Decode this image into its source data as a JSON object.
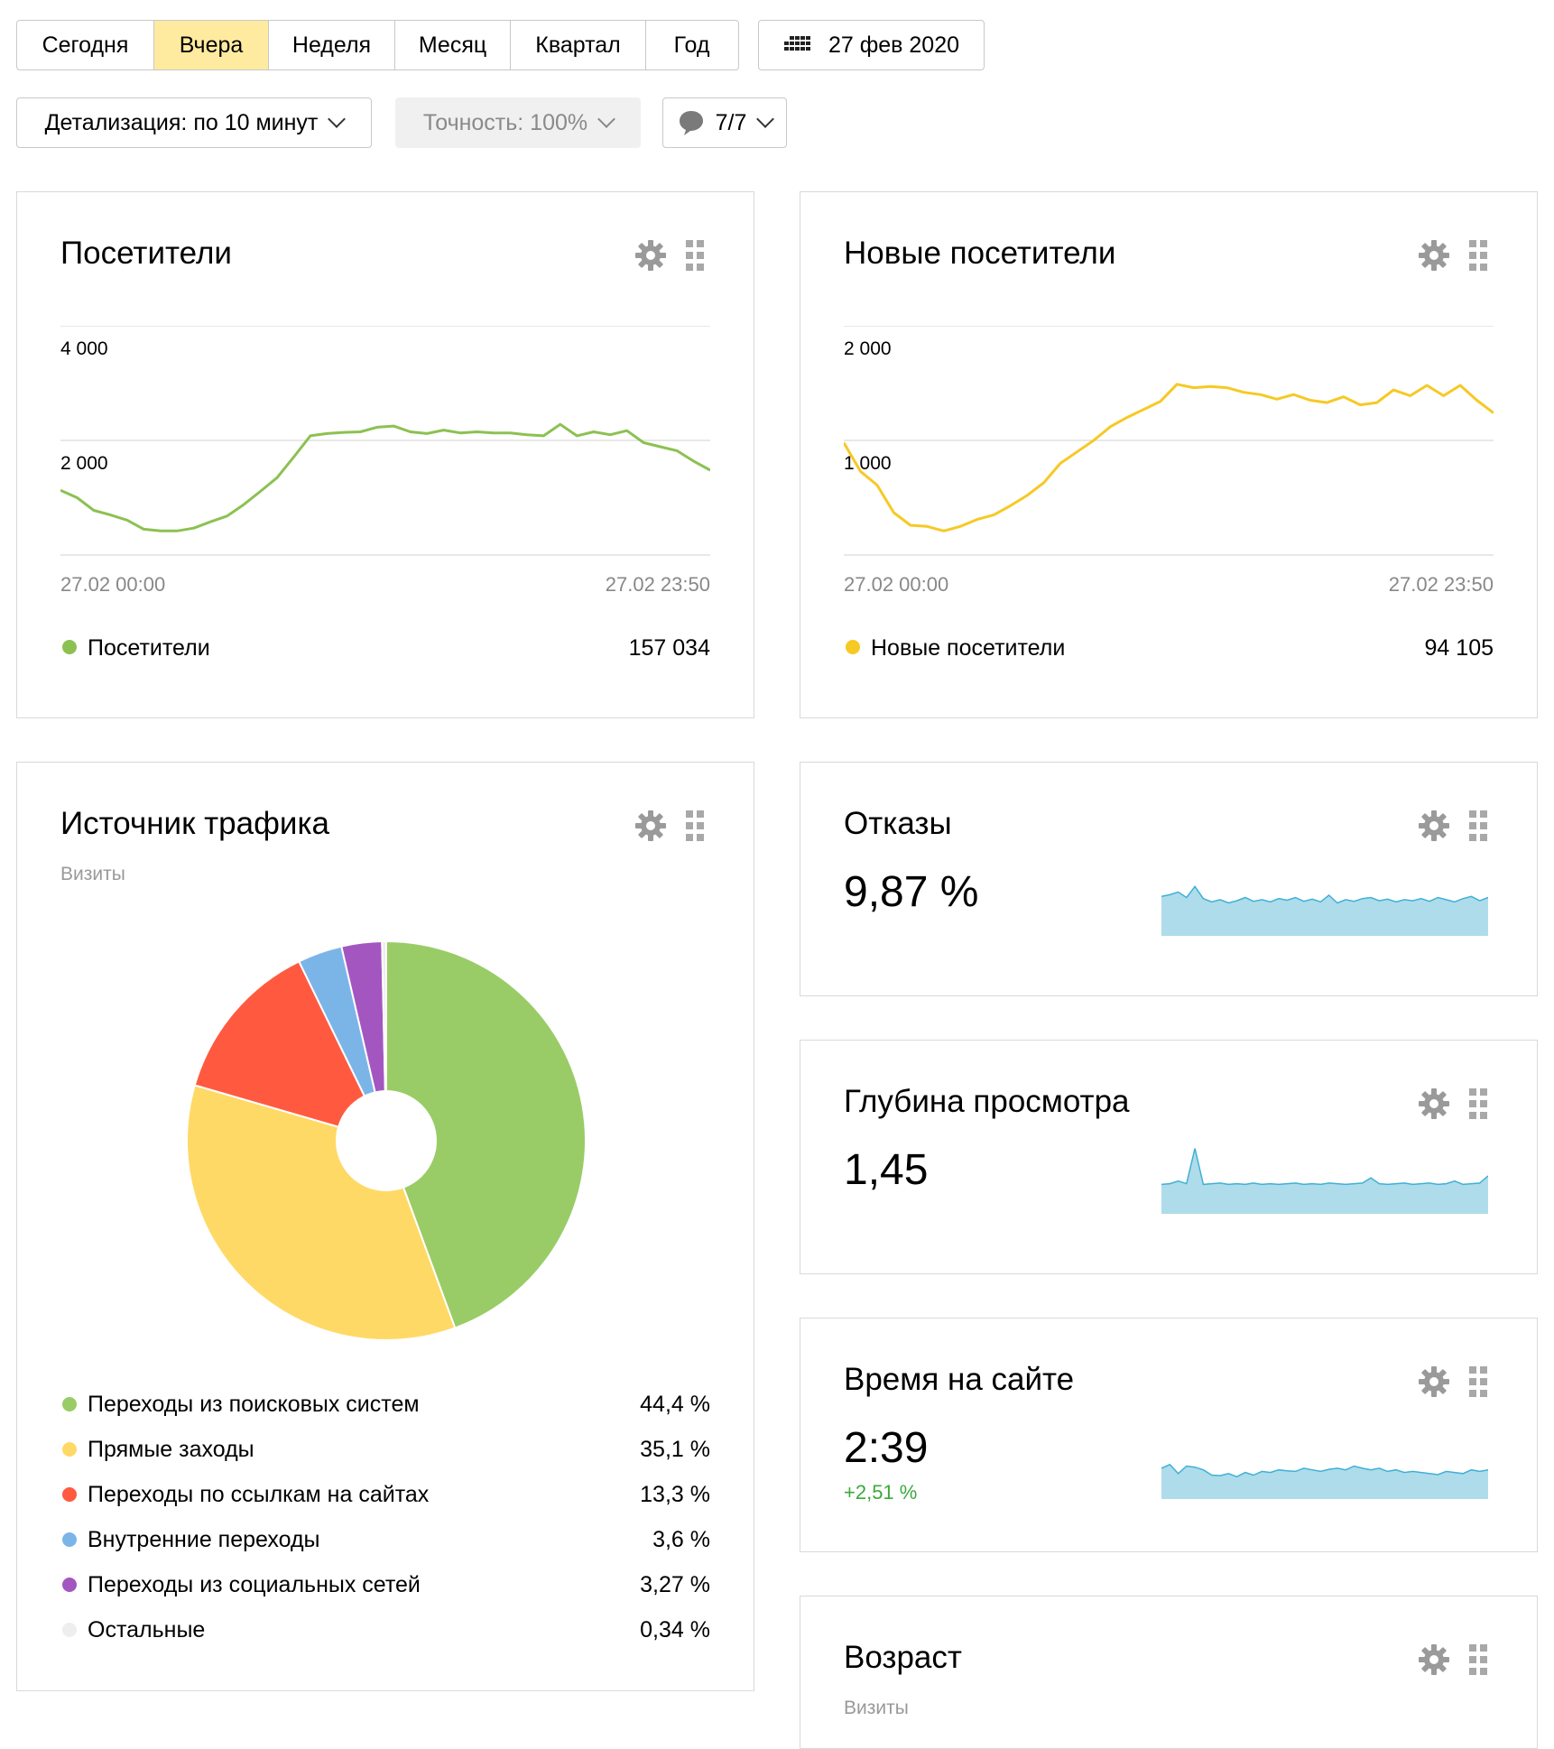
{
  "period_tabs": [
    {
      "label": "Сегодня",
      "active": false
    },
    {
      "label": "Вчера",
      "active": true
    },
    {
      "label": "Неделя",
      "active": false
    },
    {
      "label": "Месяц",
      "active": false
    },
    {
      "label": "Квартал",
      "active": false
    },
    {
      "label": "Год",
      "active": false
    }
  ],
  "date_button": {
    "label": "27 фев 2020",
    "icon": "calendar-grid-icon"
  },
  "detail_dropdown": {
    "label": "Детализация: по 10 минут"
  },
  "accuracy_dropdown": {
    "label": "Точность: 100%"
  },
  "segments_dropdown": {
    "label": "7/7",
    "icon": "speech-bubble-icon"
  },
  "colors": {
    "green": "#8cc152",
    "yellow": "#f6c925",
    "area": "#aedcea",
    "area_line": "#3fb0d6",
    "positive": "#3ba93b"
  },
  "visitors_card": {
    "title": "Посетители",
    "y_ticks": [
      "4 000",
      "2 000"
    ],
    "x_start": "27.02 00:00",
    "x_end": "27.02 23:50",
    "legend_label": "Посетители",
    "legend_value": "157 034"
  },
  "new_visitors_card": {
    "title": "Новые посетители",
    "y_ticks": [
      "2 000",
      "1 000"
    ],
    "x_start": "27.02 00:00",
    "x_end": "27.02 23:50",
    "legend_label": "Новые посетители",
    "legend_value": "94 105"
  },
  "traffic_card": {
    "title": "Источник трафика",
    "subtitle": "Визиты",
    "legend": [
      {
        "label": "Переходы из поисковых систем",
        "value": "44,4 %",
        "color": "#99cc66"
      },
      {
        "label": "Прямые заходы",
        "value": "35,1 %",
        "color": "#ffd966"
      },
      {
        "label": "Переходы по ссылкам на сайтах",
        "value": "13,3 %",
        "color": "#ff5a40"
      },
      {
        "label": "Внутренние переходы",
        "value": "3,6 %",
        "color": "#7bb5e8"
      },
      {
        "label": "Переходы из социальных сетей",
        "value": "3,27 %",
        "color": "#a456c0"
      },
      {
        "label": "Остальные",
        "value": "0,34 %",
        "color": "#eeeeee"
      }
    ]
  },
  "bounce_card": {
    "title": "Отказы",
    "value": "9,87 %"
  },
  "depth_card": {
    "title": "Глубина просмотра",
    "value": "1,45"
  },
  "time_card": {
    "title": "Время на сайте",
    "value": "2:39",
    "delta": "+2,51 %"
  },
  "age_card": {
    "title": "Возраст",
    "subtitle": "Визиты"
  },
  "chart_data": [
    {
      "type": "line",
      "title": "Посетители",
      "x_range": [
        "27.02 00:00",
        "27.02 23:50"
      ],
      "ylim": [
        0,
        4000
      ],
      "y_ticks": [
        2000,
        4000
      ],
      "series": [
        {
          "name": "Посетители",
          "color": "#8cc152",
          "values": [
            1130,
            1000,
            780,
            700,
            610,
            450,
            420,
            420,
            470,
            580,
            680,
            880,
            1110,
            1350,
            1710,
            2080,
            2120,
            2140,
            2150,
            2230,
            2250,
            2150,
            2120,
            2180,
            2130,
            2150,
            2130,
            2130,
            2100,
            2080,
            2280,
            2080,
            2150,
            2100,
            2170,
            1960,
            1890,
            1820,
            1640,
            1480
          ]
        }
      ],
      "total": "157 034"
    },
    {
      "type": "line",
      "title": "Новые посетители",
      "x_range": [
        "27.02 00:00",
        "27.02 23:50"
      ],
      "ylim": [
        0,
        2000
      ],
      "y_ticks": [
        1000,
        2000
      ],
      "series": [
        {
          "name": "Новые посетители",
          "color": "#f6c925",
          "values": [
            980,
            730,
            610,
            370,
            260,
            250,
            210,
            250,
            310,
            350,
            430,
            520,
            630,
            800,
            900,
            1000,
            1120,
            1200,
            1270,
            1340,
            1490,
            1460,
            1470,
            1460,
            1420,
            1400,
            1360,
            1400,
            1350,
            1330,
            1380,
            1310,
            1330,
            1440,
            1390,
            1480,
            1390,
            1480,
            1350,
            1240
          ]
        }
      ],
      "total": "94 105"
    },
    {
      "type": "pie",
      "title": "Источник трафика",
      "categories": [
        "Переходы из поисковых систем",
        "Прямые заходы",
        "Переходы по ссылкам на сайтах",
        "Внутренние переходы",
        "Переходы из социальных сетей",
        "Остальные"
      ],
      "values": [
        44.4,
        35.1,
        13.3,
        3.6,
        3.27,
        0.34
      ]
    },
    {
      "type": "area",
      "title": "Отказы",
      "series": [
        {
          "values": [
            0.72,
            0.75,
            0.8,
            0.7,
            0.9,
            0.68,
            0.62,
            0.66,
            0.6,
            0.64,
            0.7,
            0.63,
            0.66,
            0.62,
            0.68,
            0.65,
            0.7,
            0.63,
            0.67,
            0.62,
            0.74,
            0.6,
            0.66,
            0.63,
            0.68,
            0.7,
            0.64,
            0.67,
            0.62,
            0.66,
            0.64,
            0.68,
            0.63,
            0.7,
            0.66,
            0.62,
            0.68,
            0.72,
            0.64,
            0.7
          ]
        }
      ]
    },
    {
      "type": "area",
      "title": "Глубина просмотра",
      "series": [
        {
          "values": [
            0.45,
            0.46,
            0.5,
            0.46,
            1.0,
            0.45,
            0.46,
            0.47,
            0.45,
            0.46,
            0.45,
            0.47,
            0.45,
            0.46,
            0.45,
            0.46,
            0.47,
            0.45,
            0.46,
            0.45,
            0.47,
            0.46,
            0.45,
            0.46,
            0.47,
            0.55,
            0.46,
            0.45,
            0.46,
            0.47,
            0.45,
            0.46,
            0.47,
            0.45,
            0.46,
            0.5,
            0.45,
            0.46,
            0.47,
            0.58
          ]
        }
      ]
    },
    {
      "type": "area",
      "title": "Время на сайте",
      "series": [
        {
          "values": [
            0.58,
            0.65,
            0.48,
            0.62,
            0.6,
            0.55,
            0.45,
            0.44,
            0.48,
            0.42,
            0.5,
            0.45,
            0.52,
            0.5,
            0.55,
            0.53,
            0.52,
            0.58,
            0.55,
            0.52,
            0.56,
            0.58,
            0.55,
            0.62,
            0.58,
            0.55,
            0.58,
            0.52,
            0.55,
            0.5,
            0.52,
            0.5,
            0.48,
            0.46,
            0.52,
            0.5,
            0.48,
            0.55,
            0.52,
            0.55
          ]
        }
      ]
    }
  ]
}
